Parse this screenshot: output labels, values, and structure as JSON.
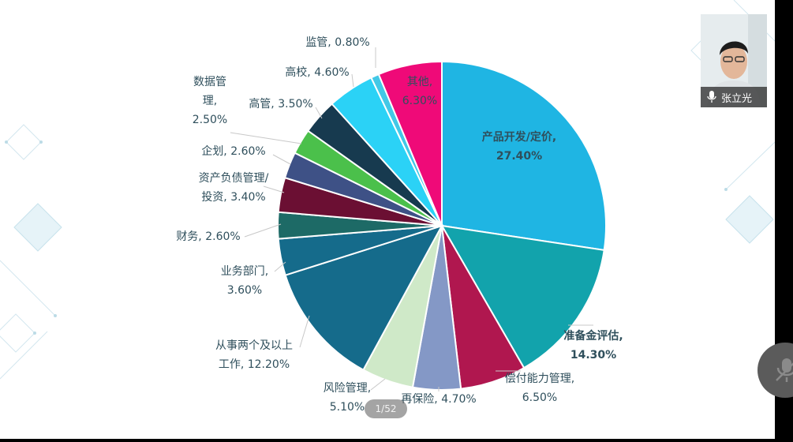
{
  "chart_data": {
    "type": "pie",
    "slices": [
      {
        "label_lines": [
          "产品开发/定价,",
          "27.40%"
        ],
        "value": 27.4,
        "color": "#1fb5e3",
        "label_pos": "inside",
        "bold": true
      },
      {
        "label_lines": [
          "准备金评估,",
          "14.30%"
        ],
        "value": 14.3,
        "color": "#12a3ac",
        "label_pos": "outside",
        "bold": true
      },
      {
        "label_lines": [
          "偿付能力管理,",
          "6.50%"
        ],
        "value": 6.5,
        "color": "#b0174f",
        "label_pos": "outside",
        "bold": false
      },
      {
        "label_lines": [
          "再保险, 4.70%"
        ],
        "value": 4.7,
        "color": "#8498c6",
        "label_pos": "outside",
        "bold": false
      },
      {
        "label_lines": [
          "风险管理,",
          "5.10%"
        ],
        "value": 5.1,
        "color": "#cfe9c8",
        "label_pos": "outside",
        "bold": false
      },
      {
        "label_lines": [
          "从事两个及以上",
          "工作, 12.20%"
        ],
        "value": 12.2,
        "color": "#156b8b",
        "label_pos": "outside",
        "bold": false
      },
      {
        "label_lines": [
          "业务部门,",
          "3.60%"
        ],
        "value": 3.6,
        "color": "#156b8b",
        "label_pos": "outside",
        "bold": false
      },
      {
        "label_lines": [
          "财务, 2.60%"
        ],
        "value": 2.6,
        "color": "#1d6a66",
        "label_pos": "outside",
        "bold": false
      },
      {
        "label_lines": [
          "资产负债管理/",
          "投资, 3.40%"
        ],
        "value": 3.4,
        "color": "#6b0f33",
        "label_pos": "outside",
        "bold": false
      },
      {
        "label_lines": [
          "企划, 2.60%"
        ],
        "value": 2.6,
        "color": "#3e5186",
        "label_pos": "outside",
        "bold": false
      },
      {
        "label_lines": [
          "数据管",
          "理,",
          "2.50%"
        ],
        "value": 2.5,
        "color": "#4bc04b",
        "label_pos": "outside",
        "bold": false
      },
      {
        "label_lines": [
          "高管, 3.50%"
        ],
        "value": 3.5,
        "color": "#173a4f",
        "label_pos": "outside",
        "bold": false
      },
      {
        "label_lines": [
          "高校, 4.60%"
        ],
        "value": 4.6,
        "color": "#2bd2f6",
        "label_pos": "outside",
        "bold": false
      },
      {
        "label_lines": [
          "监管, 0.80%"
        ],
        "value": 0.8,
        "color": "#42c8e6",
        "label_pos": "outside",
        "bold": false
      },
      {
        "label_lines": [
          "其他,",
          "6.30%"
        ],
        "value": 6.3,
        "color": "#ef0a78",
        "label_pos": "inside",
        "bold": false
      }
    ]
  },
  "slide_counter": "1/52",
  "participant_name": "张立光",
  "colors": {
    "label_text": "#2f4f5c",
    "leader_line": "#c8c8c8",
    "stage_background": "#000000",
    "slide_background": "#ffffff"
  }
}
